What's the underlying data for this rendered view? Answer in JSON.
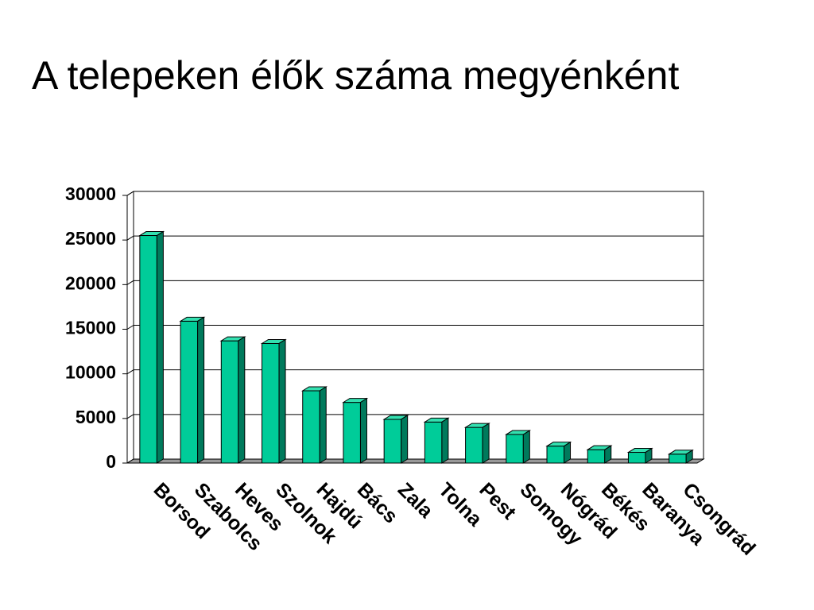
{
  "chart_data": {
    "type": "bar",
    "title": "A telepeken élők száma megyénként",
    "categories": [
      "Borsod",
      "Szabolcs",
      "Heves",
      "Szolnok",
      "Hajdú",
      "Bács",
      "Zala",
      "Tolna",
      "Pest",
      "Somogy",
      "Nógrád",
      "Békés",
      "Baranya",
      "Csongrád"
    ],
    "values": [
      25500,
      15900,
      13700,
      13400,
      8100,
      6800,
      4900,
      4600,
      4000,
      3200,
      1900,
      1500,
      1200,
      1000
    ],
    "color": "#00cc99",
    "ylim": [
      0,
      30000
    ],
    "yticks": [
      0,
      5000,
      10000,
      15000,
      20000,
      25000,
      30000
    ],
    "grid": true
  }
}
